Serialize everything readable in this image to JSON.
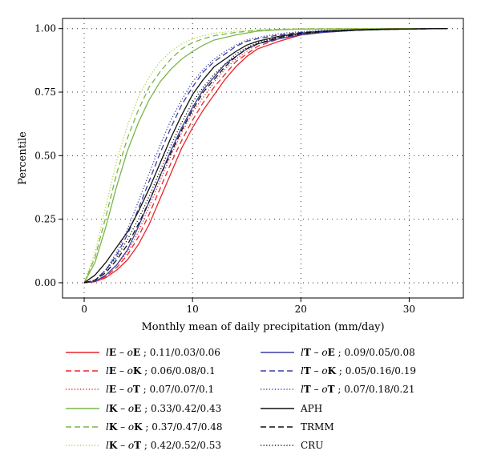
{
  "chart_data": {
    "type": "line",
    "title": "",
    "xlabel": "Monthly mean of daily precipitation (mm/day)",
    "ylabel": "Percentile",
    "xlim": [
      -2,
      35
    ],
    "ylim": [
      -0.06,
      1.04
    ],
    "xticks": [
      0,
      10,
      20,
      30
    ],
    "yticks": [
      0.0,
      0.25,
      0.5,
      0.75,
      1.0
    ],
    "ytick_labels": [
      "0.00",
      "0.25",
      "0.50",
      "0.75",
      "1.00"
    ],
    "grid": true,
    "legend_position": "bottom",
    "series": [
      {
        "name": "lE – oE ; 0.11/0.03/0.06",
        "color": "#e8262a",
        "style": "solid",
        "x": [
          0,
          1,
          2,
          3,
          4,
          5,
          6,
          7,
          8,
          9,
          10,
          11,
          12,
          13,
          14,
          15,
          16,
          18,
          20,
          22,
          25,
          28,
          31,
          33.5
        ],
        "y": [
          0,
          0.004,
          0.02,
          0.05,
          0.09,
          0.15,
          0.23,
          0.33,
          0.43,
          0.53,
          0.61,
          0.68,
          0.74,
          0.8,
          0.85,
          0.89,
          0.92,
          0.95,
          0.975,
          0.985,
          0.993,
          0.997,
          0.999,
          1.0
        ]
      },
      {
        "name": "lE – oK ; 0.06/0.08/0.1",
        "color": "#e8262a",
        "style": "dashed",
        "x": [
          0,
          1,
          2,
          3,
          4,
          5,
          6,
          7,
          8,
          9,
          10,
          11,
          12,
          13,
          14,
          15,
          16,
          18,
          20,
          22,
          25,
          28,
          31,
          33.5
        ],
        "y": [
          0,
          0.005,
          0.025,
          0.06,
          0.11,
          0.18,
          0.27,
          0.37,
          0.47,
          0.56,
          0.64,
          0.71,
          0.77,
          0.82,
          0.87,
          0.9,
          0.93,
          0.96,
          0.978,
          0.988,
          0.994,
          0.997,
          0.999,
          1.0
        ]
      },
      {
        "name": "lE – oT ; 0.07/0.07/0.1",
        "color": "#e8262a",
        "style": "dotted",
        "x": [
          0,
          1,
          2,
          3,
          4,
          5,
          6,
          7,
          8,
          9,
          10,
          11,
          12,
          13,
          14,
          15,
          16,
          18,
          20,
          22,
          25,
          28,
          31,
          33.5
        ],
        "y": [
          0,
          0.005,
          0.03,
          0.07,
          0.12,
          0.2,
          0.3,
          0.4,
          0.5,
          0.59,
          0.67,
          0.73,
          0.79,
          0.84,
          0.88,
          0.91,
          0.94,
          0.965,
          0.98,
          0.99,
          0.995,
          0.998,
          0.999,
          1.0
        ]
      },
      {
        "name": "lK – oE ; 0.33/0.42/0.43",
        "color": "#7ab648",
        "style": "solid",
        "x": [
          0,
          1,
          2,
          3,
          4,
          5,
          6,
          7,
          8,
          9,
          10,
          11,
          12,
          14,
          16,
          18,
          20,
          25,
          30,
          33.5
        ],
        "y": [
          0,
          0.08,
          0.22,
          0.38,
          0.52,
          0.63,
          0.72,
          0.79,
          0.84,
          0.88,
          0.91,
          0.935,
          0.955,
          0.975,
          0.99,
          0.995,
          0.998,
          0.999,
          1.0,
          1.0
        ]
      },
      {
        "name": "lK – oK ; 0.37/0.47/0.48",
        "color": "#7ab648",
        "style": "dashed",
        "x": [
          0,
          1,
          2,
          3,
          4,
          5,
          6,
          7,
          8,
          9,
          10,
          11,
          12,
          14,
          16,
          18,
          20,
          25,
          30,
          33.5
        ],
        "y": [
          0,
          0.1,
          0.26,
          0.43,
          0.57,
          0.68,
          0.77,
          0.83,
          0.88,
          0.92,
          0.945,
          0.96,
          0.972,
          0.985,
          0.993,
          0.997,
          0.999,
          1.0,
          1.0,
          1.0
        ]
      },
      {
        "name": "lK – oT ; 0.42/0.52/0.53",
        "color": "#b5d334",
        "style": "dotted",
        "x": [
          0,
          1,
          2,
          3,
          4,
          5,
          6,
          7,
          8,
          9,
          10,
          11,
          12,
          14,
          16,
          18,
          20,
          25,
          30,
          33.5
        ],
        "y": [
          0,
          0.12,
          0.3,
          0.48,
          0.62,
          0.73,
          0.81,
          0.87,
          0.91,
          0.94,
          0.96,
          0.972,
          0.982,
          0.99,
          0.995,
          0.998,
          0.999,
          1.0,
          1.0,
          1.0
        ]
      },
      {
        "name": "lT – oE ; 0.09/0.05/0.08",
        "color": "#3b3ea5",
        "style": "solid",
        "x": [
          0,
          1,
          2,
          3,
          4,
          5,
          6,
          7,
          8,
          9,
          10,
          11,
          12,
          13,
          14,
          15,
          16,
          18,
          20,
          22,
          25,
          28,
          31,
          33.5
        ],
        "y": [
          0,
          0.005,
          0.03,
          0.07,
          0.13,
          0.22,
          0.32,
          0.42,
          0.52,
          0.61,
          0.69,
          0.76,
          0.81,
          0.86,
          0.89,
          0.92,
          0.94,
          0.96,
          0.975,
          0.985,
          0.993,
          0.997,
          0.999,
          1.0
        ]
      },
      {
        "name": "lT – oK ; 0.05/0.16/0.19",
        "color": "#3b3ea5",
        "style": "dashed",
        "x": [
          0,
          1,
          2,
          3,
          4,
          5,
          6,
          7,
          8,
          9,
          10,
          11,
          12,
          13,
          14,
          15,
          16,
          18,
          20,
          22,
          25,
          28,
          31,
          33.5
        ],
        "y": [
          0,
          0.01,
          0.05,
          0.11,
          0.19,
          0.29,
          0.4,
          0.51,
          0.61,
          0.7,
          0.77,
          0.83,
          0.87,
          0.9,
          0.93,
          0.95,
          0.96,
          0.975,
          0.985,
          0.99,
          0.995,
          0.998,
          0.999,
          1.0
        ]
      },
      {
        "name": "lT – oT ; 0.07/0.18/0.21",
        "color": "#3b3ea5",
        "style": "dotted",
        "x": [
          0,
          1,
          2,
          3,
          4,
          5,
          6,
          7,
          8,
          9,
          10,
          11,
          12,
          13,
          14,
          15,
          16,
          18,
          20,
          22,
          25,
          28,
          31,
          33.5
        ],
        "y": [
          0,
          0.01,
          0.05,
          0.12,
          0.21,
          0.32,
          0.43,
          0.54,
          0.64,
          0.72,
          0.79,
          0.84,
          0.88,
          0.91,
          0.935,
          0.955,
          0.965,
          0.98,
          0.988,
          0.993,
          0.996,
          0.998,
          0.999,
          1.0
        ]
      },
      {
        "name": "APH",
        "color": "#111111",
        "style": "solid",
        "x": [
          0,
          1,
          2,
          3,
          4,
          5,
          6,
          7,
          8,
          9,
          10,
          11,
          12,
          13,
          14,
          15,
          16,
          18,
          20,
          22,
          25,
          28,
          31,
          33.5
        ],
        "y": [
          0,
          0.03,
          0.08,
          0.14,
          0.2,
          0.28,
          0.37,
          0.47,
          0.57,
          0.66,
          0.74,
          0.8,
          0.85,
          0.88,
          0.91,
          0.935,
          0.95,
          0.97,
          0.982,
          0.99,
          0.995,
          0.998,
          0.999,
          1.0
        ]
      },
      {
        "name": "TRMM",
        "color": "#111111",
        "style": "dashed",
        "x": [
          0,
          1,
          2,
          3,
          4,
          5,
          6,
          7,
          8,
          9,
          10,
          11,
          12,
          13,
          14,
          15,
          16,
          18,
          20,
          22,
          25,
          28,
          31,
          33.5
        ],
        "y": [
          0,
          0.01,
          0.04,
          0.09,
          0.15,
          0.23,
          0.32,
          0.42,
          0.51,
          0.6,
          0.68,
          0.75,
          0.8,
          0.85,
          0.89,
          0.92,
          0.94,
          0.965,
          0.98,
          0.988,
          0.994,
          0.997,
          0.999,
          1.0
        ]
      },
      {
        "name": "CRU",
        "color": "#111111",
        "style": "dotted",
        "x": [
          0,
          1,
          2,
          3,
          4,
          5,
          6,
          7,
          8,
          9,
          10,
          11,
          12,
          13,
          14,
          15,
          16,
          18,
          20,
          22,
          25,
          28,
          31,
          33.5
        ],
        "y": [
          0,
          0.01,
          0.05,
          0.1,
          0.17,
          0.25,
          0.34,
          0.44,
          0.54,
          0.63,
          0.71,
          0.77,
          0.82,
          0.86,
          0.9,
          0.925,
          0.945,
          0.967,
          0.98,
          0.988,
          0.994,
          0.997,
          0.999,
          1.0
        ]
      }
    ],
    "legend": {
      "left_column": [
        {
          "prefix": "l",
          "a": "E",
          "mid": " – o",
          "b": "E",
          "tail": " ; 0.11/0.03/0.06",
          "series_index": 0
        },
        {
          "prefix": "l",
          "a": "E",
          "mid": " – o",
          "b": "K",
          "tail": " ; 0.06/0.08/0.1",
          "series_index": 1
        },
        {
          "prefix": "l",
          "a": "E",
          "mid": " – o",
          "b": "T",
          "tail": " ; 0.07/0.07/0.1",
          "series_index": 2
        },
        {
          "prefix": "l",
          "a": "K",
          "mid": " – o",
          "b": "E",
          "tail": " ; 0.33/0.42/0.43",
          "series_index": 3
        },
        {
          "prefix": "l",
          "a": "K",
          "mid": " – o",
          "b": "K",
          "tail": " ; 0.37/0.47/0.48",
          "series_index": 4
        },
        {
          "prefix": "l",
          "a": "K",
          "mid": " – o",
          "b": "T",
          "tail": " ; 0.42/0.52/0.53",
          "series_index": 5
        }
      ],
      "right_column": [
        {
          "prefix": "l",
          "a": "T",
          "mid": " – o",
          "b": "E",
          "tail": " ; 0.09/0.05/0.08",
          "series_index": 6
        },
        {
          "prefix": "l",
          "a": "T",
          "mid": " – o",
          "b": "K",
          "tail": " ; 0.05/0.16/0.19",
          "series_index": 7
        },
        {
          "prefix": "l",
          "a": "T",
          "mid": " – o",
          "b": "T",
          "tail": " ; 0.07/0.18/0.21",
          "series_index": 8
        },
        {
          "plain": "APH",
          "series_index": 9
        },
        {
          "plain": "TRMM",
          "series_index": 10
        },
        {
          "plain": "CRU",
          "series_index": 11
        }
      ]
    }
  }
}
